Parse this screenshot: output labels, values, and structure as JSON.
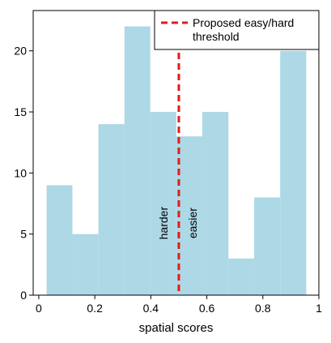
{
  "chart_data": {
    "type": "bar",
    "subtype": "histogram",
    "bins": [
      {
        "start": 0.028,
        "end": 0.12,
        "count": 9
      },
      {
        "start": 0.12,
        "end": 0.213,
        "count": 5
      },
      {
        "start": 0.213,
        "end": 0.306,
        "count": 14
      },
      {
        "start": 0.306,
        "end": 0.398,
        "count": 22
      },
      {
        "start": 0.398,
        "end": 0.491,
        "count": 15
      },
      {
        "start": 0.491,
        "end": 0.584,
        "count": 13
      },
      {
        "start": 0.584,
        "end": 0.677,
        "count": 15
      },
      {
        "start": 0.677,
        "end": 0.769,
        "count": 3
      },
      {
        "start": 0.769,
        "end": 0.862,
        "count": 8
      },
      {
        "start": 0.862,
        "end": 0.955,
        "count": 20
      }
    ],
    "bar_color": "#add8e6",
    "xlabel": "spatial scores",
    "ylabel": "",
    "xlim": [
      -0.02,
      1.0
    ],
    "ylim": [
      0,
      23.3
    ],
    "xticks": [
      0,
      0.2,
      0.4,
      0.6,
      0.8,
      1
    ],
    "xtick_labels": [
      "0",
      "0.2",
      "0.4",
      "0.6",
      "0.8",
      "1"
    ],
    "yticks": [
      0,
      5,
      10,
      15,
      20
    ],
    "ytick_labels": [
      "0",
      "5",
      "10",
      "15",
      "20"
    ],
    "grid": false,
    "threshold": {
      "x": 0.5,
      "color": "#e41a1c",
      "style": "dashed"
    },
    "annotations": {
      "left": "harder",
      "right": "easier"
    },
    "legend": {
      "position": "top-right",
      "entries": [
        {
          "label_line1": "Proposed easy/hard",
          "label_line2": "threshold",
          "color": "#e41a1c",
          "style": "dashed"
        }
      ]
    }
  }
}
